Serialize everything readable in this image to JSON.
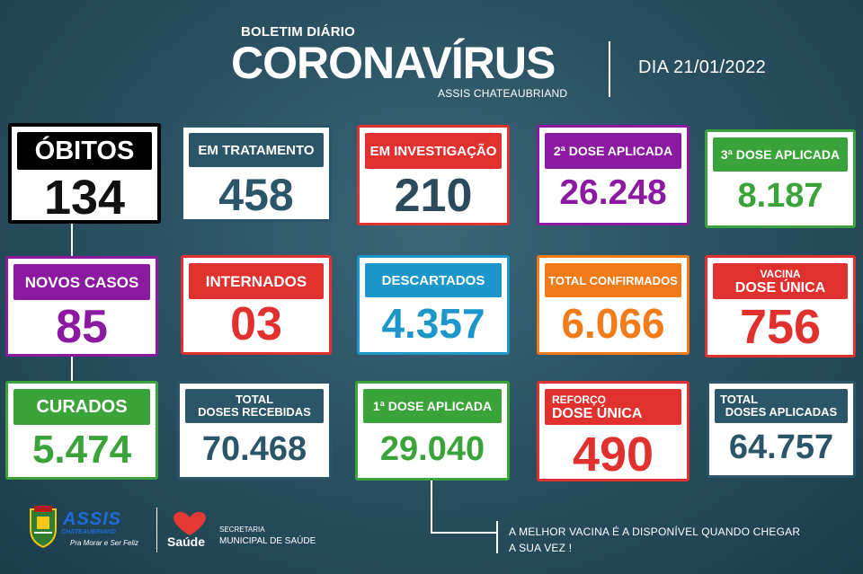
{
  "header": {
    "subtitle": "BOLETIM DIÁRIO",
    "title": "CORONAVÍRUS",
    "city": "ASSIS CHATEAUBRIAND",
    "date": "DIA 21/01/2022"
  },
  "cards": {
    "obitos": {
      "label": "ÓBITOS",
      "value": "134",
      "color": "#000000"
    },
    "tratamento": {
      "label": "EM TRATAMENTO",
      "value": "458",
      "color": "#2b5568"
    },
    "investigacao": {
      "label": "EM INVESTIGAÇÃO",
      "value": "210",
      "color": "#e0312f"
    },
    "dose2": {
      "label": "2ª DOSE APLICADA",
      "value": "26.248",
      "color": "#8b1aa0"
    },
    "dose3": {
      "label": "3ª DOSE APLICADA",
      "value": "8.187",
      "color": "#3aa33a"
    },
    "novos": {
      "label": "NOVOS CASOS",
      "value": "85",
      "color": "#8b1aa0"
    },
    "internados": {
      "label": "INTERNADOS",
      "value": "03",
      "color": "#e0312f"
    },
    "descartados": {
      "label": "DESCARTADOS",
      "value": "4.357",
      "color": "#1d97c9"
    },
    "confirmados": {
      "label": "TOTAL CONFIRMADOS",
      "value": "6.066",
      "color": "#f07b18"
    },
    "dose_unica": {
      "label_1": "VACINA",
      "label_2": "DOSE ÚNICA",
      "value": "756",
      "color": "#e0312f"
    },
    "curados": {
      "label": "CURADOS",
      "value": "5.474",
      "color": "#3aa33a"
    },
    "doses_recebidas": {
      "label_1": "TOTAL",
      "label_2": "DOSES RECEBIDAS",
      "value": "70.468",
      "color": "#2b5568"
    },
    "dose1": {
      "label": "1ª DOSE APLICADA",
      "value": "29.040",
      "color": "#3aa33a"
    },
    "reforco": {
      "label_1": "REFORÇO",
      "label_2": "DOSE ÚNICA",
      "value": "490",
      "color": "#e0312f"
    },
    "doses_aplicadas": {
      "label_1": "TOTAL",
      "label_2": "DOSES APLICADAS",
      "value": "64.757",
      "color": "#2b5568"
    }
  },
  "footer": {
    "message_line1": "A MELHOR VACINA É A DISPONÍVEL QUANDO CHEGAR",
    "message_line2": "A SUA VEZ !",
    "assis_logo": "ASSIS",
    "assis_sub": "CHATEAUBRIAND",
    "assis_slogan": "Pra Morar e Ser Feliz",
    "saude_logo": "Saúde",
    "secretaria_1": "SECRETARIA",
    "secretaria_2": "MUNICIPAL DE SAÚDE"
  }
}
